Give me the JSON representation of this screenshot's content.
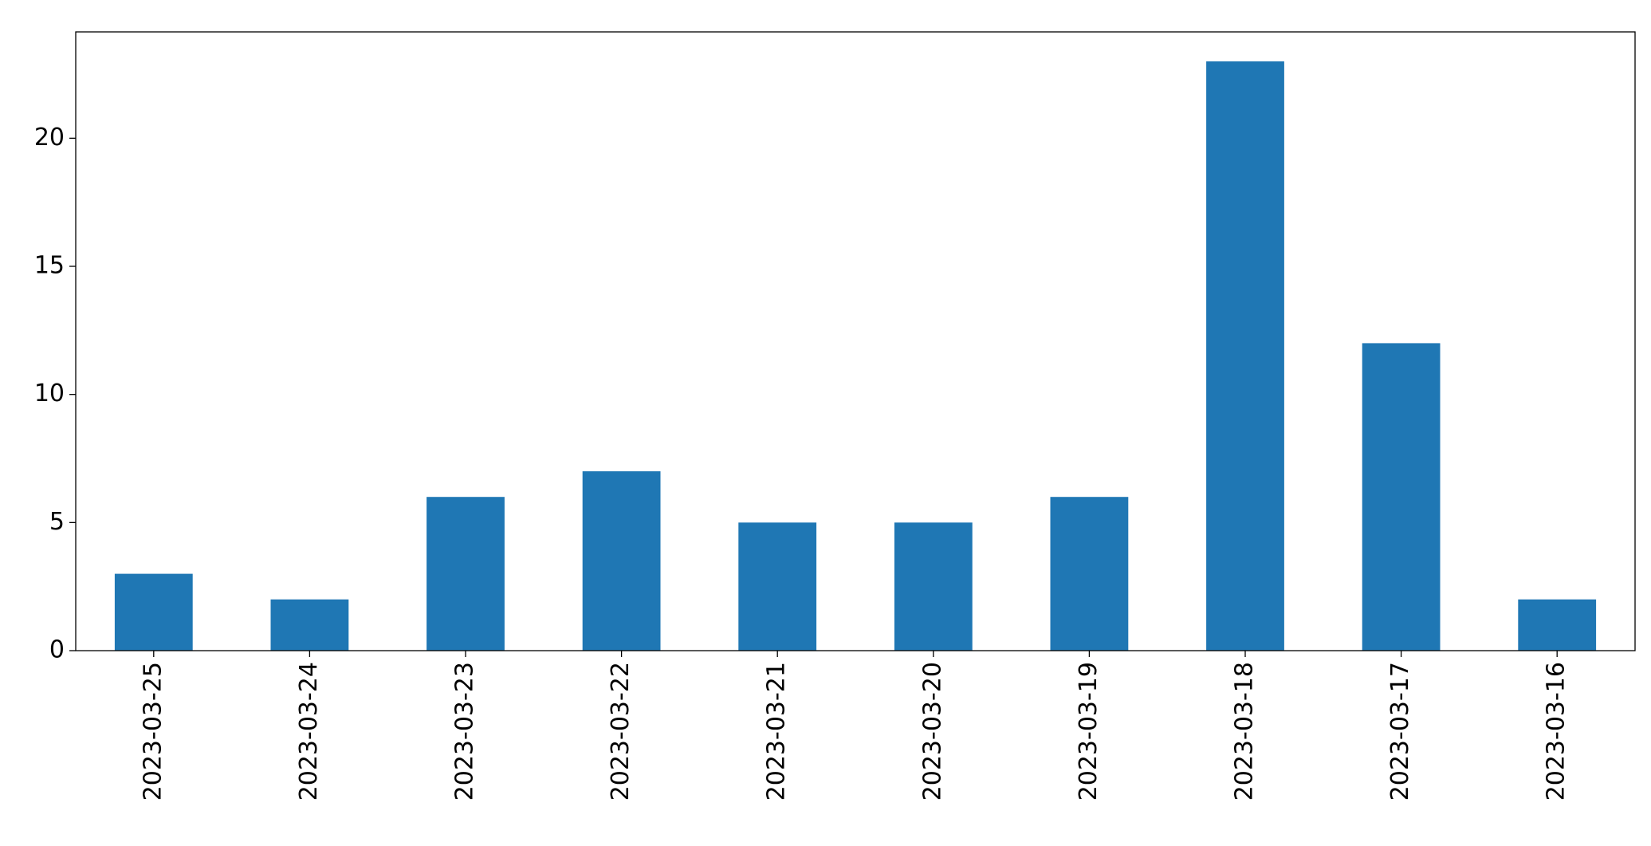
{
  "chart_data": {
    "type": "bar",
    "categories": [
      "2023-03-25",
      "2023-03-24",
      "2023-03-23",
      "2023-03-22",
      "2023-03-21",
      "2023-03-20",
      "2023-03-19",
      "2023-03-18",
      "2023-03-17",
      "2023-03-16"
    ],
    "values": [
      3,
      2,
      6,
      7,
      5,
      5,
      6,
      23,
      12,
      2
    ],
    "color": "#1f77b4",
    "ylim": [
      0,
      24.15
    ],
    "yticks": [
      0,
      5,
      10,
      15,
      20
    ],
    "grid": false
  }
}
